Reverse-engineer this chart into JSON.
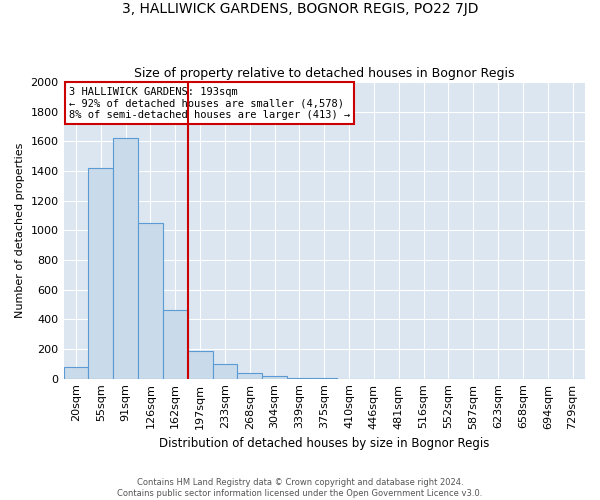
{
  "title": "3, HALLIWICK GARDENS, BOGNOR REGIS, PO22 7JD",
  "subtitle": "Size of property relative to detached houses in Bognor Regis",
  "xlabel": "Distribution of detached houses by size in Bognor Regis",
  "ylabel": "Number of detached properties",
  "footnote1": "Contains HM Land Registry data © Crown copyright and database right 2024.",
  "footnote2": "Contains public sector information licensed under the Open Government Licence v3.0.",
  "annotation_line1": "3 HALLIWICK GARDENS: 193sqm",
  "annotation_line2": "← 92% of detached houses are smaller (4,578)",
  "annotation_line3": "8% of semi-detached houses are larger (413) →",
  "bar_color": "#c9daea",
  "bar_edge_color": "#5b9bd5",
  "marker_color": "#cc0000",
  "annotation_box_edge": "#cc0000",
  "categories": [
    "20sqm",
    "55sqm",
    "91sqm",
    "126sqm",
    "162sqm",
    "197sqm",
    "233sqm",
    "268sqm",
    "304sqm",
    "339sqm",
    "375sqm",
    "410sqm",
    "446sqm",
    "481sqm",
    "516sqm",
    "552sqm",
    "587sqm",
    "623sqm",
    "658sqm",
    "694sqm",
    "729sqm"
  ],
  "values": [
    80,
    1420,
    1620,
    1050,
    460,
    190,
    100,
    40,
    15,
    5,
    3,
    1,
    0,
    0,
    0,
    0,
    0,
    0,
    0,
    0,
    0
  ],
  "ylim": [
    0,
    2000
  ],
  "yticks": [
    0,
    200,
    400,
    600,
    800,
    1000,
    1200,
    1400,
    1600,
    1800,
    2000
  ],
  "marker_bin_index": 5,
  "figsize": [
    6.0,
    5.0
  ],
  "dpi": 100,
  "bg_color": "#dce6f1"
}
